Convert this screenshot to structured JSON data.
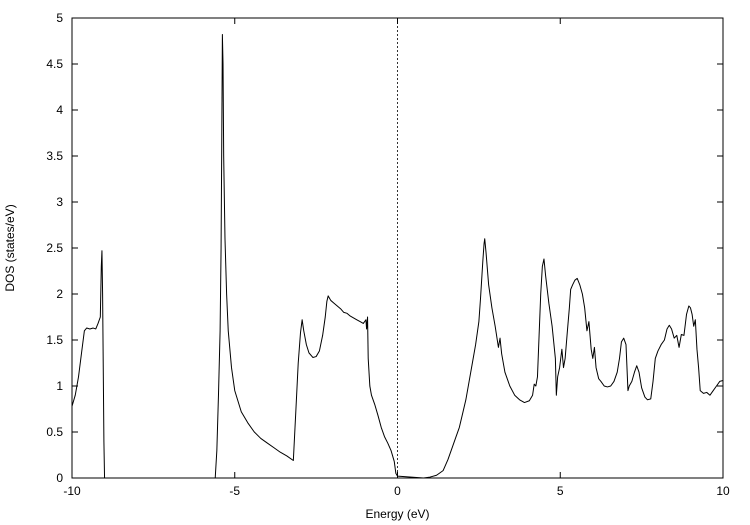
{
  "chart_data": {
    "type": "line",
    "title": "",
    "xlabel": "Energy (eV)",
    "ylabel": "DOS (states/eV)",
    "xlim": [
      -10,
      10
    ],
    "ylim": [
      0,
      5
    ],
    "x_ticks": [
      -10,
      -5,
      0,
      5,
      10
    ],
    "x_tick_labels": [
      "-10",
      "-5",
      "0",
      "5",
      "10"
    ],
    "y_ticks": [
      0,
      0.5,
      1,
      1.5,
      2,
      2.5,
      3,
      3.5,
      4,
      4.5,
      5
    ],
    "y_tick_labels": [
      "0",
      "0.5",
      "1",
      "1.5",
      "2",
      "2.5",
      "3",
      "3.5",
      "4",
      "4.5",
      "5"
    ],
    "grid": false,
    "legend": "none",
    "reference_lines": [
      {
        "axis": "x",
        "value": 0,
        "style": "dotted"
      }
    ],
    "series": [
      {
        "points": [
          [
            -10.0,
            0.78
          ],
          [
            -9.9,
            0.9
          ],
          [
            -9.8,
            1.1
          ],
          [
            -9.7,
            1.38
          ],
          [
            -9.62,
            1.6
          ],
          [
            -9.55,
            1.63
          ],
          [
            -9.45,
            1.62
          ],
          [
            -9.35,
            1.63
          ],
          [
            -9.27,
            1.62
          ],
          [
            -9.2,
            1.68
          ],
          [
            -9.13,
            1.75
          ],
          [
            -9.1,
            2.3
          ],
          [
            -9.08,
            2.47
          ],
          [
            -9.06,
            2.0
          ],
          [
            -9.04,
            1.2
          ],
          [
            -9.02,
            0.4
          ],
          [
            -9.0,
            0.0
          ],
          [
            -5.6,
            0.0
          ],
          [
            -5.55,
            0.3
          ],
          [
            -5.5,
            0.9
          ],
          [
            -5.45,
            1.6
          ],
          [
            -5.42,
            2.5
          ],
          [
            -5.4,
            3.6
          ],
          [
            -5.38,
            4.82
          ],
          [
            -5.36,
            4.5
          ],
          [
            -5.34,
            3.5
          ],
          [
            -5.3,
            2.6
          ],
          [
            -5.25,
            2.0
          ],
          [
            -5.2,
            1.6
          ],
          [
            -5.1,
            1.2
          ],
          [
            -5.0,
            0.95
          ],
          [
            -4.8,
            0.72
          ],
          [
            -4.6,
            0.6
          ],
          [
            -4.4,
            0.5
          ],
          [
            -4.2,
            0.43
          ],
          [
            -4.0,
            0.38
          ],
          [
            -3.8,
            0.33
          ],
          [
            -3.6,
            0.28
          ],
          [
            -3.4,
            0.24
          ],
          [
            -3.2,
            0.19
          ],
          [
            -3.12,
            0.75
          ],
          [
            -3.05,
            1.25
          ],
          [
            -2.98,
            1.58
          ],
          [
            -2.93,
            1.72
          ],
          [
            -2.88,
            1.6
          ],
          [
            -2.8,
            1.45
          ],
          [
            -2.72,
            1.36
          ],
          [
            -2.6,
            1.31
          ],
          [
            -2.5,
            1.32
          ],
          [
            -2.4,
            1.38
          ],
          [
            -2.3,
            1.55
          ],
          [
            -2.22,
            1.75
          ],
          [
            -2.17,
            1.92
          ],
          [
            -2.13,
            1.98
          ],
          [
            -2.05,
            1.93
          ],
          [
            -1.95,
            1.9
          ],
          [
            -1.85,
            1.87
          ],
          [
            -1.75,
            1.84
          ],
          [
            -1.65,
            1.8
          ],
          [
            -1.55,
            1.79
          ],
          [
            -1.45,
            1.76
          ],
          [
            -1.35,
            1.74
          ],
          [
            -1.25,
            1.72
          ],
          [
            -1.15,
            1.7
          ],
          [
            -1.05,
            1.68
          ],
          [
            -0.97,
            1.72
          ],
          [
            -0.95,
            1.62
          ],
          [
            -0.92,
            1.75
          ],
          [
            -0.9,
            1.3
          ],
          [
            -0.85,
            1.0
          ],
          [
            -0.8,
            0.9
          ],
          [
            -0.7,
            0.8
          ],
          [
            -0.6,
            0.68
          ],
          [
            -0.5,
            0.55
          ],
          [
            -0.4,
            0.45
          ],
          [
            -0.3,
            0.38
          ],
          [
            -0.2,
            0.3
          ],
          [
            -0.1,
            0.18
          ],
          [
            -0.05,
            0.05
          ],
          [
            0.0,
            0.02
          ],
          [
            0.8,
            0.0
          ],
          [
            1.0,
            0.01
          ],
          [
            1.2,
            0.03
          ],
          [
            1.4,
            0.08
          ],
          [
            1.55,
            0.2
          ],
          [
            1.7,
            0.35
          ],
          [
            1.8,
            0.45
          ],
          [
            1.9,
            0.55
          ],
          [
            2.0,
            0.7
          ],
          [
            2.1,
            0.85
          ],
          [
            2.2,
            1.05
          ],
          [
            2.3,
            1.25
          ],
          [
            2.4,
            1.45
          ],
          [
            2.5,
            1.7
          ],
          [
            2.55,
            1.95
          ],
          [
            2.62,
            2.35
          ],
          [
            2.66,
            2.55
          ],
          [
            2.68,
            2.6
          ],
          [
            2.72,
            2.45
          ],
          [
            2.8,
            2.1
          ],
          [
            2.9,
            1.85
          ],
          [
            3.0,
            1.65
          ],
          [
            3.1,
            1.42
          ],
          [
            3.15,
            1.52
          ],
          [
            3.2,
            1.35
          ],
          [
            3.3,
            1.15
          ],
          [
            3.45,
            1.0
          ],
          [
            3.6,
            0.9
          ],
          [
            3.75,
            0.85
          ],
          [
            3.9,
            0.82
          ],
          [
            4.05,
            0.84
          ],
          [
            4.15,
            0.9
          ],
          [
            4.2,
            1.02
          ],
          [
            4.25,
            1.0
          ],
          [
            4.3,
            1.1
          ],
          [
            4.35,
            1.55
          ],
          [
            4.4,
            2.0
          ],
          [
            4.45,
            2.3
          ],
          [
            4.5,
            2.38
          ],
          [
            4.55,
            2.2
          ],
          [
            4.6,
            2.05
          ],
          [
            4.65,
            1.9
          ],
          [
            4.75,
            1.65
          ],
          [
            4.85,
            1.3
          ],
          [
            4.88,
            0.9
          ],
          [
            4.92,
            1.1
          ],
          [
            4.98,
            1.2
          ],
          [
            5.05,
            1.4
          ],
          [
            5.1,
            1.2
          ],
          [
            5.15,
            1.3
          ],
          [
            5.22,
            1.6
          ],
          [
            5.28,
            1.85
          ],
          [
            5.32,
            2.05
          ],
          [
            5.38,
            2.1
          ],
          [
            5.45,
            2.15
          ],
          [
            5.52,
            2.17
          ],
          [
            5.6,
            2.1
          ],
          [
            5.68,
            2.0
          ],
          [
            5.75,
            1.85
          ],
          [
            5.82,
            1.6
          ],
          [
            5.88,
            1.7
          ],
          [
            5.95,
            1.4
          ],
          [
            6.0,
            1.3
          ],
          [
            6.05,
            1.42
          ],
          [
            6.1,
            1.2
          ],
          [
            6.18,
            1.08
          ],
          [
            6.25,
            1.05
          ],
          [
            6.35,
            1.0
          ],
          [
            6.45,
            0.99
          ],
          [
            6.55,
            1.0
          ],
          [
            6.65,
            1.05
          ],
          [
            6.75,
            1.15
          ],
          [
            6.82,
            1.3
          ],
          [
            6.88,
            1.48
          ],
          [
            6.95,
            1.52
          ],
          [
            7.02,
            1.45
          ],
          [
            7.08,
            0.95
          ],
          [
            7.12,
            1.0
          ],
          [
            7.2,
            1.05
          ],
          [
            7.28,
            1.15
          ],
          [
            7.35,
            1.22
          ],
          [
            7.42,
            1.15
          ],
          [
            7.5,
            0.98
          ],
          [
            7.6,
            0.88
          ],
          [
            7.68,
            0.85
          ],
          [
            7.78,
            0.86
          ],
          [
            7.85,
            1.05
          ],
          [
            7.92,
            1.3
          ],
          [
            8.0,
            1.38
          ],
          [
            8.1,
            1.45
          ],
          [
            8.2,
            1.5
          ],
          [
            8.28,
            1.62
          ],
          [
            8.35,
            1.66
          ],
          [
            8.42,
            1.62
          ],
          [
            8.5,
            1.52
          ],
          [
            8.58,
            1.55
          ],
          [
            8.65,
            1.42
          ],
          [
            8.72,
            1.56
          ],
          [
            8.8,
            1.55
          ],
          [
            8.88,
            1.78
          ],
          [
            8.95,
            1.87
          ],
          [
            9.0,
            1.85
          ],
          [
            9.05,
            1.78
          ],
          [
            9.1,
            1.65
          ],
          [
            9.15,
            1.72
          ],
          [
            9.2,
            1.4
          ],
          [
            9.25,
            1.2
          ],
          [
            9.3,
            0.95
          ],
          [
            9.4,
            0.92
          ],
          [
            9.5,
            0.93
          ],
          [
            9.6,
            0.9
          ],
          [
            9.7,
            0.95
          ],
          [
            9.8,
            1.0
          ],
          [
            9.9,
            1.05
          ],
          [
            10.0,
            1.06
          ]
        ]
      }
    ]
  }
}
